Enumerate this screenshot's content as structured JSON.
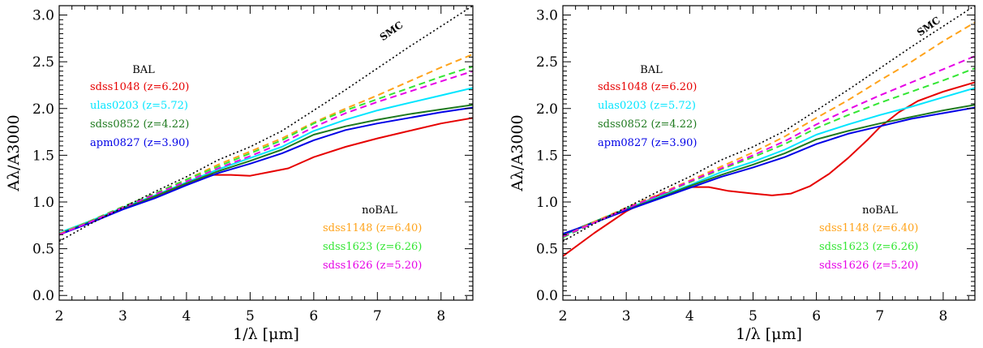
{
  "chart_data": [
    {
      "type": "line",
      "xlabel": "1/λ [μm]",
      "ylabel": "Aλ/A3000",
      "xlim": [
        2,
        8.5
      ],
      "ylim": [
        -0.05,
        3.1
      ],
      "xticks": [
        2,
        3,
        4,
        5,
        6,
        7,
        8
      ],
      "yticks": [
        0.0,
        0.5,
        1.0,
        1.5,
        2.0,
        2.5,
        3.0
      ],
      "grid": false,
      "annotations": [
        {
          "text": "SMC",
          "x": 7.25,
          "y": 2.8
        }
      ],
      "legend_groups": [
        {
          "heading": "BAL",
          "placement": "upper-left"
        },
        {
          "heading": "noBAL",
          "placement": "lower-right"
        }
      ],
      "series": [
        {
          "name": "sdss1048 (z=6.20)",
          "group": "BAL",
          "color": "#e60000",
          "style": "solid",
          "x": [
            2,
            2.5,
            3,
            3.5,
            4,
            4.4,
            4.7,
            5,
            5.3,
            5.6,
            6,
            6.5,
            7,
            7.5,
            8,
            8.5
          ],
          "y": [
            0.65,
            0.79,
            0.93,
            1.05,
            1.19,
            1.29,
            1.29,
            1.28,
            1.32,
            1.36,
            1.48,
            1.59,
            1.68,
            1.76,
            1.84,
            1.9
          ]
        },
        {
          "name": "ulas0203 (z=5.72)",
          "group": "BAL",
          "color": "#00e5ff",
          "style": "solid",
          "x": [
            2,
            2.5,
            3,
            3.5,
            4,
            4.5,
            5,
            5.5,
            6,
            6.5,
            7,
            7.5,
            8,
            8.5
          ],
          "y": [
            0.67,
            0.8,
            0.94,
            1.07,
            1.21,
            1.35,
            1.47,
            1.59,
            1.76,
            1.88,
            1.98,
            2.06,
            2.14,
            2.22
          ]
        },
        {
          "name": "sdss0852 (z=4.22)",
          "group": "BAL",
          "color": "#1f7a1f",
          "style": "solid",
          "x": [
            2,
            2.5,
            3,
            3.5,
            4,
            4.5,
            5,
            5.5,
            6,
            6.5,
            7,
            7.5,
            8,
            8.5
          ],
          "y": [
            0.66,
            0.79,
            0.93,
            1.06,
            1.2,
            1.33,
            1.44,
            1.56,
            1.72,
            1.81,
            1.88,
            1.94,
            1.99,
            2.04
          ]
        },
        {
          "name": "apm0827 (z=3.90)",
          "group": "BAL",
          "color": "#0000e6",
          "style": "solid",
          "x": [
            2,
            2.5,
            3,
            3.5,
            4,
            4.5,
            5,
            5.5,
            6,
            6.5,
            7,
            7.5,
            8,
            8.5
          ],
          "y": [
            0.65,
            0.78,
            0.92,
            1.04,
            1.18,
            1.31,
            1.41,
            1.52,
            1.66,
            1.77,
            1.84,
            1.9,
            1.96,
            2.01
          ]
        },
        {
          "name": "sdss1148 (z=6.40)",
          "group": "noBAL",
          "color": "#ffa31a",
          "style": "dashed",
          "x": [
            2,
            2.5,
            3,
            3.5,
            4,
            4.5,
            5,
            5.5,
            6,
            6.5,
            7,
            7.5,
            8,
            8.5
          ],
          "y": [
            0.66,
            0.8,
            0.95,
            1.09,
            1.24,
            1.4,
            1.54,
            1.68,
            1.85,
            2.0,
            2.14,
            2.29,
            2.44,
            2.58
          ]
        },
        {
          "name": "sdss1623 (z=6.26)",
          "group": "noBAL",
          "color": "#33e633",
          "style": "dashed",
          "x": [
            2,
            2.5,
            3,
            3.5,
            4,
            4.5,
            5,
            5.5,
            6,
            6.5,
            7,
            7.5,
            8,
            8.5
          ],
          "y": [
            0.65,
            0.8,
            0.95,
            1.09,
            1.24,
            1.38,
            1.52,
            1.66,
            1.84,
            1.98,
            2.1,
            2.22,
            2.34,
            2.45
          ]
        },
        {
          "name": "sdss1626 (z=5.20)",
          "group": "noBAL",
          "color": "#e600e6",
          "style": "dashed",
          "x": [
            2,
            2.5,
            3,
            3.5,
            4,
            4.5,
            5,
            5.5,
            6,
            6.5,
            7,
            7.5,
            8,
            8.5
          ],
          "y": [
            0.65,
            0.79,
            0.94,
            1.08,
            1.22,
            1.36,
            1.49,
            1.63,
            1.8,
            1.95,
            2.07,
            2.18,
            2.29,
            2.4
          ]
        },
        {
          "name": "SMC",
          "color": "#000000",
          "style": "dotted",
          "x": [
            2,
            2.5,
            3,
            3.5,
            4,
            4.5,
            5,
            5.5,
            6,
            6.5,
            7,
            7.5,
            8,
            8.5
          ],
          "y": [
            0.58,
            0.77,
            0.94,
            1.11,
            1.27,
            1.45,
            1.59,
            1.76,
            1.98,
            2.2,
            2.43,
            2.66,
            2.88,
            3.1
          ]
        }
      ]
    },
    {
      "type": "line",
      "xlabel": "1/λ [μm]",
      "ylabel": "Aλ/A3000",
      "xlim": [
        2,
        8.5
      ],
      "ylim": [
        -0.05,
        3.1
      ],
      "xticks": [
        2,
        3,
        4,
        5,
        6,
        7,
        8
      ],
      "yticks": [
        0.0,
        0.5,
        1.0,
        1.5,
        2.0,
        2.5,
        3.0
      ],
      "grid": false,
      "annotations": [
        {
          "text": "SMC",
          "x": 7.8,
          "y": 2.85
        }
      ],
      "legend_groups": [
        {
          "heading": "BAL",
          "placement": "upper-left"
        },
        {
          "heading": "noBAL",
          "placement": "lower-right"
        }
      ],
      "series": [
        {
          "name": "sdss1048 (z=6.20)",
          "group": "BAL",
          "color": "#e60000",
          "style": "solid",
          "x": [
            2,
            2.5,
            3,
            3.5,
            4,
            4.3,
            4.6,
            5,
            5.3,
            5.6,
            5.9,
            6.2,
            6.5,
            6.8,
            7,
            7.3,
            7.6,
            8,
            8.3,
            8.5
          ],
          "y": [
            0.42,
            0.67,
            0.9,
            1.07,
            1.16,
            1.16,
            1.12,
            1.09,
            1.07,
            1.09,
            1.17,
            1.3,
            1.47,
            1.66,
            1.8,
            1.96,
            2.08,
            2.18,
            2.24,
            2.28
          ]
        },
        {
          "name": "ulas0203 (z=5.72)",
          "group": "BAL",
          "color": "#00e5ff",
          "style": "solid",
          "x": [
            2,
            2.5,
            3,
            3.5,
            4,
            4.5,
            5,
            5.5,
            6,
            6.5,
            7,
            7.5,
            8,
            8.5
          ],
          "y": [
            0.64,
            0.79,
            0.93,
            1.05,
            1.18,
            1.32,
            1.43,
            1.56,
            1.72,
            1.83,
            1.93,
            2.02,
            2.12,
            2.22
          ]
        },
        {
          "name": "sdss0852 (z=4.22)",
          "group": "BAL",
          "color": "#1f7a1f",
          "style": "solid",
          "x": [
            2,
            2.5,
            3,
            3.5,
            4,
            4.5,
            5,
            5.5,
            6,
            6.5,
            7,
            7.5,
            8,
            8.5
          ],
          "y": [
            0.65,
            0.79,
            0.92,
            1.04,
            1.17,
            1.29,
            1.4,
            1.52,
            1.67,
            1.76,
            1.84,
            1.91,
            1.98,
            2.04
          ]
        },
        {
          "name": "apm0827 (z=3.90)",
          "group": "BAL",
          "color": "#0000e6",
          "style": "solid",
          "x": [
            2,
            2.5,
            3,
            3.5,
            4,
            4.5,
            5,
            5.5,
            6,
            6.5,
            7,
            7.5,
            8,
            8.5
          ],
          "y": [
            0.66,
            0.78,
            0.91,
            1.03,
            1.15,
            1.27,
            1.37,
            1.48,
            1.62,
            1.73,
            1.81,
            1.89,
            1.95,
            2.01
          ]
        },
        {
          "name": "sdss1148 (z=6.40)",
          "group": "noBAL",
          "color": "#ffa31a",
          "style": "dashed",
          "x": [
            2,
            2.5,
            3,
            3.5,
            4,
            4.5,
            5,
            5.5,
            6,
            6.5,
            7,
            7.5,
            8,
            8.5
          ],
          "y": [
            0.63,
            0.79,
            0.94,
            1.08,
            1.23,
            1.38,
            1.53,
            1.7,
            1.9,
            2.09,
            2.3,
            2.5,
            2.72,
            2.92
          ]
        },
        {
          "name": "sdss1623 (z=6.26)",
          "group": "noBAL",
          "color": "#33e633",
          "style": "dashed",
          "x": [
            2,
            2.5,
            3,
            3.5,
            4,
            4.5,
            5,
            5.5,
            6,
            6.5,
            7,
            7.5,
            8,
            8.5
          ],
          "y": [
            0.62,
            0.78,
            0.93,
            1.07,
            1.21,
            1.35,
            1.48,
            1.62,
            1.79,
            1.93,
            2.06,
            2.18,
            2.3,
            2.43
          ]
        },
        {
          "name": "sdss1626 (z=5.20)",
          "group": "noBAL",
          "color": "#e600e6",
          "style": "dashed",
          "x": [
            2,
            2.5,
            3,
            3.5,
            4,
            4.5,
            5,
            5.5,
            6,
            6.5,
            7,
            7.5,
            8,
            8.5
          ],
          "y": [
            0.63,
            0.78,
            0.93,
            1.07,
            1.22,
            1.36,
            1.5,
            1.65,
            1.83,
            1.99,
            2.14,
            2.28,
            2.42,
            2.56
          ]
        },
        {
          "name": "SMC",
          "color": "#000000",
          "style": "dotted",
          "x": [
            2,
            2.5,
            3,
            3.5,
            4,
            4.5,
            5,
            5.5,
            6,
            6.5,
            7,
            7.5,
            8,
            8.5
          ],
          "y": [
            0.58,
            0.77,
            0.94,
            1.11,
            1.27,
            1.45,
            1.59,
            1.76,
            1.98,
            2.2,
            2.43,
            2.66,
            2.88,
            3.1
          ]
        }
      ]
    }
  ]
}
